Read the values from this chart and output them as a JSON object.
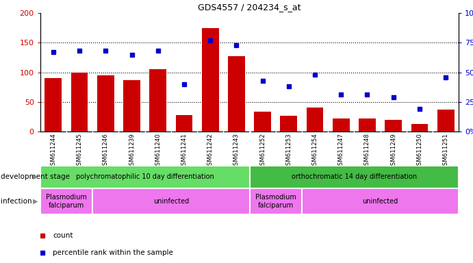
{
  "title": "GDS4557 / 204234_s_at",
  "samples": [
    "GSM611244",
    "GSM611245",
    "GSM611246",
    "GSM611239",
    "GSM611240",
    "GSM611241",
    "GSM611242",
    "GSM611243",
    "GSM611252",
    "GSM611253",
    "GSM611254",
    "GSM611247",
    "GSM611248",
    "GSM611249",
    "GSM611250",
    "GSM611251"
  ],
  "counts": [
    90,
    100,
    95,
    87,
    105,
    28,
    175,
    127,
    33,
    27,
    40,
    22,
    22,
    20,
    13,
    37
  ],
  "percentiles": [
    67,
    68,
    68,
    65,
    68,
    40,
    77,
    73,
    43,
    38,
    48,
    31,
    31,
    29,
    19,
    46
  ],
  "bar_color": "#cc0000",
  "dot_color": "#0000cc",
  "left_ylim": [
    0,
    200
  ],
  "right_ylim": [
    0,
    100
  ],
  "left_yticks": [
    0,
    50,
    100,
    150,
    200
  ],
  "right_yticks": [
    0,
    25,
    50,
    75,
    100
  ],
  "right_yticklabels": [
    "0%",
    "25%",
    "50%",
    "75%",
    "100%"
  ],
  "development_stage_groups": [
    {
      "label": "polychromatophilic 10 day differentiation",
      "start": 0,
      "end": 8,
      "color": "#66dd66"
    },
    {
      "label": "orthochromatic 14 day differentiation",
      "start": 8,
      "end": 16,
      "color": "#44bb44"
    }
  ],
  "infection_groups": [
    {
      "label": "Plasmodium\nfalciparum",
      "start": 0,
      "end": 2,
      "color": "#ee77ee"
    },
    {
      "label": "uninfected",
      "start": 2,
      "end": 8,
      "color": "#ee77ee"
    },
    {
      "label": "Plasmodium\nfalciparum",
      "start": 8,
      "end": 10,
      "color": "#ee77ee"
    },
    {
      "label": "uninfected",
      "start": 10,
      "end": 16,
      "color": "#ee77ee"
    }
  ],
  "legend_count_label": "count",
  "legend_pct_label": "percentile rank within the sample",
  "dev_stage_label": "development stage",
  "infection_label": "infection",
  "xticklabel_bg": "#cccccc"
}
